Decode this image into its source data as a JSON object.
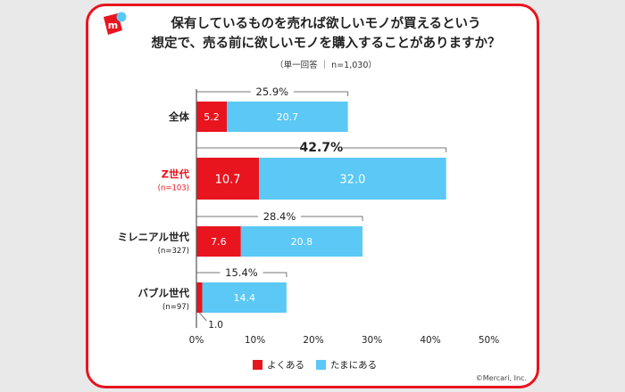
{
  "title_lines": [
    "保有しているものを売れば欲しいモノが買えるという",
    "想定で、売る前に欲しいモノを購入することがありますか？"
  ],
  "subtitle": "（単一回答 ｜ n=1,030）",
  "copyright": "©Mercari, Inc.",
  "colors": {
    "often": "#e8141e",
    "sometimes": "#5bc8f5",
    "accent": "#e8141e"
  },
  "chart_data": {
    "type": "bar",
    "orientation": "horizontal",
    "stacked": true,
    "categories": [
      {
        "label": "全体",
        "sublabel": "",
        "highlight": false
      },
      {
        "label": "Z世代",
        "sublabel": "(n=103)",
        "highlight": true
      },
      {
        "label": "ミレニアル世代",
        "sublabel": "(n=327)",
        "highlight": false
      },
      {
        "label": "バブル世代",
        "sublabel": "(n=97)",
        "highlight": false
      }
    ],
    "series": [
      {
        "name": "よくある",
        "values": [
          5.2,
          10.7,
          7.6,
          1.0
        ]
      },
      {
        "name": "たまにある",
        "values": [
          20.7,
          32.0,
          20.8,
          14.4
        ]
      }
    ],
    "totals": [
      "25.9%",
      "42.7%",
      "28.4%",
      "15.4%"
    ],
    "value_labels": [
      [
        "5.2",
        "10.7",
        "7.6",
        "1.0"
      ],
      [
        "20.7",
        "32.0",
        "20.8",
        "14.4"
      ]
    ],
    "xlim": [
      0,
      50
    ],
    "xticks": [
      "0%",
      "10%",
      "20%",
      "30%",
      "40%",
      "50%"
    ],
    "legend_position": "bottom"
  }
}
